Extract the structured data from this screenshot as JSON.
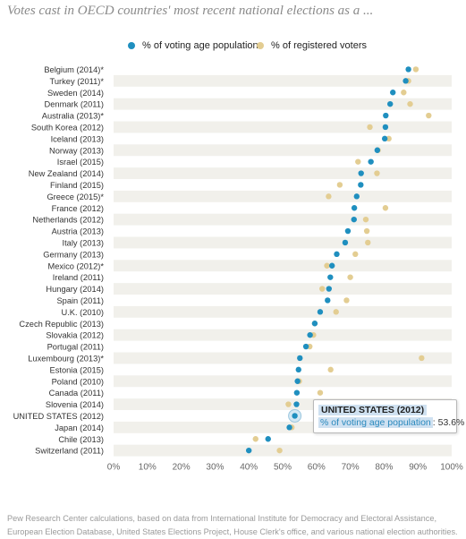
{
  "title": "Votes cast in OECD countries' most recent national elections as a ...",
  "legend": [
    {
      "label": "% of voting age population",
      "color": "#1f8fbf"
    },
    {
      "label": "% of registered voters",
      "color": "#e3cd92"
    }
  ],
  "tooltip": {
    "title": "UNITED STATES (2012)",
    "series": "% of voting age population",
    "value": "53.6%"
  },
  "footnote": "Pew Research Center calculations, based on data from International Institute for Democracy and Electoral Assistance, European Election Database, United States Elections Project, House Clerk's office, and various national election authorities.",
  "chart_data": {
    "type": "scatter",
    "title": "Votes cast in OECD countries' most recent national elections as a ...",
    "categories": [
      "Belgium (2014)*",
      "Turkey (2011)*",
      "Sweden (2014)",
      "Denmark (2011)",
      "Australia (2013)*",
      "South Korea (2012)",
      "Iceland (2013)",
      "Norway (2013)",
      "Israel (2015)",
      "New Zealand (2014)",
      "Finland (2015)",
      "Greece (2015)*",
      "France (2012)",
      "Netherlands (2012)",
      "Austria (2013)",
      "Italy (2013)",
      "Germany (2013)",
      "Mexico (2012)*",
      "Ireland (2011)",
      "Hungary (2014)",
      "Spain (2011)",
      "U.K. (2010)",
      "Czech Republic (2013)",
      "Slovakia (2012)",
      "Portugal (2011)",
      "Luxembourg (2013)*",
      "Estonia (2015)",
      "Poland (2010)",
      "Canada (2011)",
      "Slovenia (2014)",
      "UNITED STATES (2012)",
      "Japan (2014)",
      "Chile (2013)",
      "Switzerland (2011)"
    ],
    "series": [
      {
        "name": "% of voting age population",
        "values": [
          87.2,
          86.4,
          82.6,
          81.8,
          80.5,
          80.4,
          80.2,
          78.0,
          76.1,
          73.2,
          73.1,
          71.9,
          71.2,
          71.1,
          69.3,
          68.5,
          66.0,
          64.6,
          64.1,
          63.7,
          63.3,
          61.1,
          59.5,
          58.1,
          56.9,
          55.1,
          54.7,
          54.4,
          54.2,
          54.1,
          53.6,
          52.0,
          45.7,
          40.0
        ]
      },
      {
        "name": "% of registered voters",
        "values": [
          89.4,
          87.2,
          85.8,
          87.7,
          93.2,
          75.8,
          81.4,
          78.2,
          72.3,
          77.9,
          66.9,
          63.6,
          80.4,
          74.6,
          74.9,
          75.2,
          71.5,
          63.1,
          70.0,
          61.7,
          68.9,
          65.8,
          59.5,
          59.1,
          58.0,
          91.1,
          64.2,
          54.9,
          61.1,
          51.7,
          null,
          52.7,
          42.0,
          49.1
        ]
      }
    ],
    "xlim": [
      0,
      100
    ],
    "xticks": [
      "0%",
      "10%",
      "20%",
      "30%",
      "40%",
      "50%",
      "60%",
      "70%",
      "80%",
      "90%",
      "100%"
    ],
    "grid": "alternating row bands",
    "legend_position": "top"
  }
}
